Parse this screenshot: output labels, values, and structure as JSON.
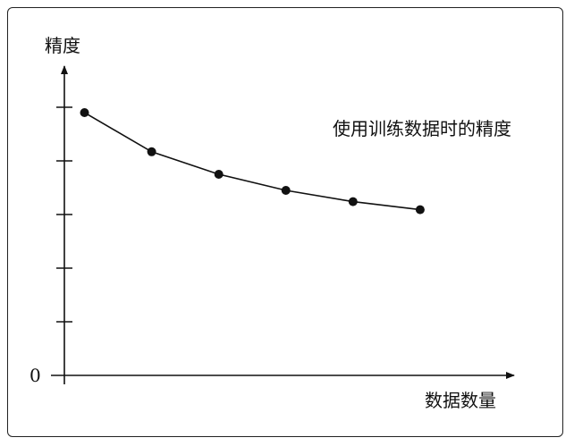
{
  "chart_data": {
    "type": "line",
    "ylabel": "精度",
    "xlabel": "数据数量",
    "y_origin_label": "0",
    "series": [
      {
        "name": "使用训练数据时的精度",
        "x": [
          1,
          2,
          3,
          4,
          5,
          6
        ],
        "values": [
          4.9,
          4.17,
          3.75,
          3.45,
          3.24,
          3.09
        ]
      }
    ],
    "ylim": [
      0,
      6
    ],
    "xlim": [
      0.7,
      7.2
    ],
    "y_ticks": [
      1,
      2,
      3,
      4,
      5
    ],
    "grid": false,
    "legend": "annotation",
    "color": "#111111"
  }
}
